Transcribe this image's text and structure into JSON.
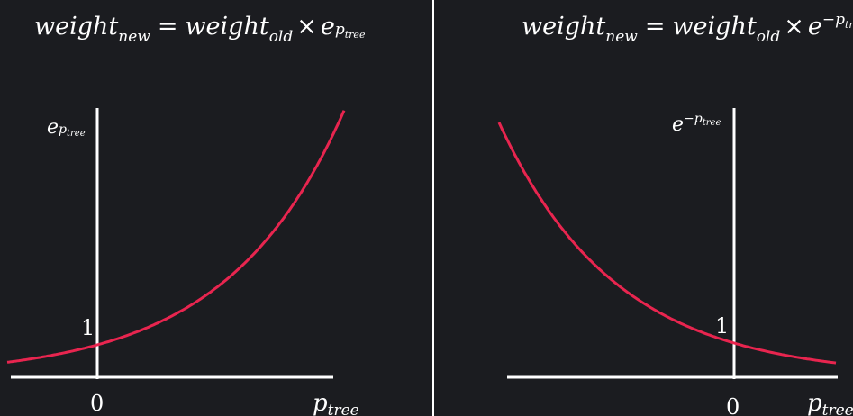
{
  "colors": {
    "background": "#1b1c20",
    "axis": "#ffffff",
    "curve": "#e8254f",
    "text": "#ffffff"
  },
  "panels": [
    {
      "formula": {
        "lhs_base": "weight",
        "lhs_sub": "new",
        "equals": "=",
        "rhs_base": "weight",
        "rhs_sub": "old",
        "times": "×",
        "exp_base": "e",
        "exp_sign": "",
        "exp_var": "p",
        "exp_sub": "tree"
      },
      "y_axis_label": {
        "base": "e",
        "sign": "",
        "var": "p",
        "sub": "tree"
      },
      "x_axis_label": {
        "var": "p",
        "sub": "tree"
      },
      "origin_label": "0",
      "intercept_label": "1",
      "curve": {
        "function": "exp",
        "sign": 1
      }
    },
    {
      "formula": {
        "lhs_base": "weight",
        "lhs_sub": "new",
        "equals": "=",
        "rhs_base": "weight",
        "rhs_sub": "old",
        "times": "×",
        "exp_base": "e",
        "exp_sign": "−",
        "exp_var": "p",
        "exp_sub": "tree"
      },
      "y_axis_label": {
        "base": "e",
        "sign": "−",
        "var": "p",
        "sub": "tree"
      },
      "x_axis_label": {
        "var": "p",
        "sub": "tree"
      },
      "origin_label": "0",
      "intercept_label": "1",
      "curve": {
        "function": "exp",
        "sign": -1
      }
    }
  ]
}
